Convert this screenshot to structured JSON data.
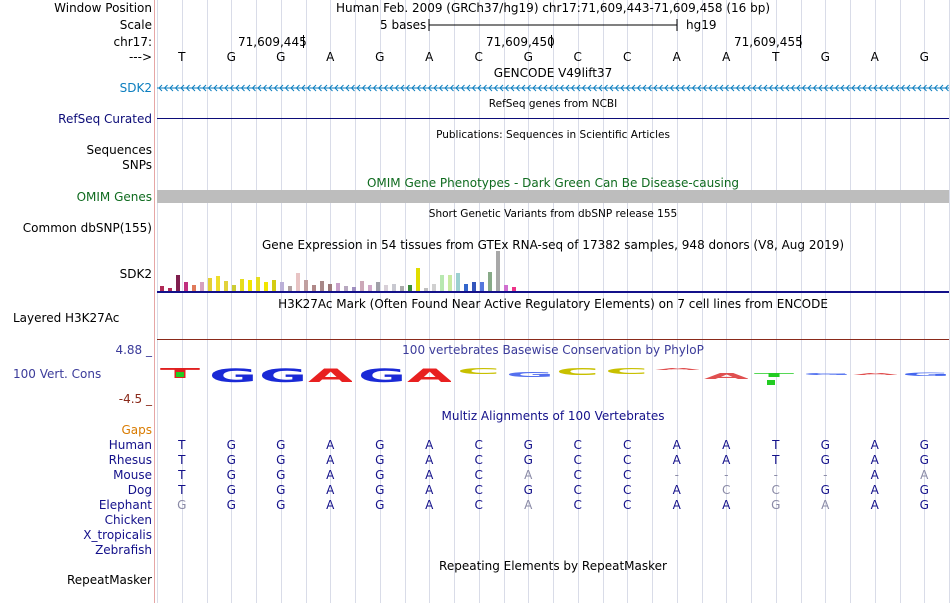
{
  "header": {
    "window_position_label": "Window Position",
    "scale_label": "Scale",
    "chrom_label": "chr17:",
    "arrow_label": "--->",
    "position_text": "Human Feb. 2009 (GRCh37/hg19)   chr17:71,609,443-71,609,458 (16 bp)",
    "scale_text": "5 bases",
    "assembly": "hg19",
    "ticks": [
      "71,609,445",
      "71,609,450",
      "71,609,455"
    ]
  },
  "bases": [
    "T",
    "G",
    "G",
    "A",
    "G",
    "A",
    "C",
    "G",
    "C",
    "C",
    "A",
    "A",
    "T",
    "G",
    "A",
    "G"
  ],
  "tracks": {
    "gencode_title": "GENCODE V49lift37",
    "gencode_gene": "SDK2",
    "refseq_title": "RefSeq genes from NCBI",
    "refseq_label": "RefSeq Curated",
    "pubs_title": "Publications: Sequences in Scientific Articles",
    "pubs_label": "Sequences",
    "snps_label": "SNPs",
    "omim_title": "OMIM Gene Phenotypes - Dark Green Can Be Disease-causing",
    "omim_label": "OMIM Genes",
    "dbsnp_title": "Short Genetic Variants from dbSNP release 155",
    "dbsnp_label": "Common dbSNP(155)",
    "gtex_title": "Gene Expression in 54 tissues from GTEx RNA-seq of 17382 samples, 948 donors (V8, Aug 2019)",
    "gtex_label": "SDK2",
    "h3k_title": "H3K27Ac Mark (Often Found Near Active Regulatory Elements) on 7 cell lines from ENCODE",
    "h3k_label": "Layered H3K27Ac",
    "cons_title": "100 vertebrates Basewise Conservation by PhyloP",
    "cons_label": "100 Vert. Cons",
    "cons_max": "4.88 _",
    "cons_min": "-4.5 _",
    "multiz_title": "Multiz Alignments of 100 Vertebrates",
    "repeat_title": "Repeating Elements by RepeatMasker",
    "repeat_label": "RepeatMasker"
  },
  "colors": {
    "gencode": "#0c7ebf",
    "refseq": "#0c0c78",
    "omim": "#0f6b1f",
    "species": "#13108a",
    "gaps": "#d97b00",
    "cons": "#3b3b9a",
    "gtex_axis": "#13108a",
    "h3k_axis": "#8a2a1a"
  },
  "gtex_bars": [
    {
      "h": 5,
      "c": "#b02a56"
    },
    {
      "h": 3,
      "c": "#b02a56"
    },
    {
      "h": 16,
      "c": "#7f1f4e"
    },
    {
      "h": 9,
      "c": "#c0307f"
    },
    {
      "h": 6,
      "c": "#e07a5a"
    },
    {
      "h": 9,
      "c": "#d6a0c0"
    },
    {
      "h": 13,
      "c": "#e4d033"
    },
    {
      "h": 15,
      "c": "#eedd2a"
    },
    {
      "h": 10,
      "c": "#e2d23a"
    },
    {
      "h": 6,
      "c": "#cccc33"
    },
    {
      "h": 12,
      "c": "#e6dd1e"
    },
    {
      "h": 11,
      "c": "#f2e600"
    },
    {
      "h": 14,
      "c": "#e6dd1e"
    },
    {
      "h": 9,
      "c": "#f2e600"
    },
    {
      "h": 11,
      "c": "#d4cc11"
    },
    {
      "h": 9,
      "c": "#bbb0d8"
    },
    {
      "h": 5,
      "c": "#b0a0a0"
    },
    {
      "h": 18,
      "c": "#e8c4c4"
    },
    {
      "h": 11,
      "c": "#c0a0a0"
    },
    {
      "h": 6,
      "c": "#b08888"
    },
    {
      "h": 10,
      "c": "#a88888"
    },
    {
      "h": 7,
      "c": "#9c7878"
    },
    {
      "h": 8,
      "c": "#c8a0c8"
    },
    {
      "h": 5,
      "c": "#b8a8c0"
    },
    {
      "h": 4,
      "c": "#a090c0"
    },
    {
      "h": 10,
      "c": "#cca8b8"
    },
    {
      "h": 6,
      "c": "#d0a8c8"
    },
    {
      "h": 9,
      "c": "#a0a0a8"
    },
    {
      "h": 6,
      "c": "#d8d0d8"
    },
    {
      "h": 7,
      "c": "#c8c8d0"
    },
    {
      "h": 5,
      "c": "#aaaaaa"
    },
    {
      "h": 6,
      "c": "#3b8a3b"
    },
    {
      "h": 23,
      "c": "#e0dd00"
    },
    {
      "h": 3,
      "c": "#bfbfbf"
    },
    {
      "h": 7,
      "c": "#d0d0d0"
    },
    {
      "h": 16,
      "c": "#b8e8b0"
    },
    {
      "h": 16,
      "c": "#c8eaa0"
    },
    {
      "h": 18,
      "c": "#9cd0d0"
    },
    {
      "h": 7,
      "c": "#3366cc"
    },
    {
      "h": 9,
      "c": "#3355bb"
    },
    {
      "h": 9,
      "c": "#5577dd"
    },
    {
      "h": 19,
      "c": "#88aa88"
    },
    {
      "h": 40,
      "c": "#a8a8a8"
    },
    {
      "h": 6,
      "c": "#d070d0"
    },
    {
      "h": 4,
      "c": "#ee3388"
    }
  ],
  "logo": [
    {
      "l": "T",
      "h": 10,
      "c": "#e02020",
      "y": 0
    },
    {
      "l": "G",
      "h": 14,
      "c": "#1a2ad6",
      "y": 0
    },
    {
      "l": "G",
      "h": 14,
      "c": "#1a2ad6",
      "y": 0
    },
    {
      "l": "A",
      "h": 14,
      "c": "#e82020",
      "y": 0
    },
    {
      "l": "G",
      "h": 14,
      "c": "#1a2ad6",
      "y": 0
    },
    {
      "l": "A",
      "h": 14,
      "c": "#e82020",
      "y": 0
    },
    {
      "l": "C",
      "h": 6,
      "c": "#c8c000",
      "y": 0
    },
    {
      "l": "G",
      "h": 5,
      "c": "#5570ee",
      "y": 4
    },
    {
      "l": "C",
      "h": 7,
      "c": "#c8c000",
      "y": 0
    },
    {
      "l": "C",
      "h": 6,
      "c": "#c8c000",
      "y": 0
    },
    {
      "l": "A",
      "h": 2,
      "c": "#e05050",
      "y": 0
    },
    {
      "l": "A",
      "h": 6,
      "c": "#e05050",
      "y": 5
    },
    {
      "l": "T",
      "h": 4,
      "c": "#22cc22",
      "y": 5
    },
    {
      "l": "G",
      "h": 2,
      "c": "#4466ee",
      "y": 5
    },
    {
      "l": "A",
      "h": 2,
      "c": "#e05050",
      "y": 5
    },
    {
      "l": "G",
      "h": 3,
      "c": "#4466ee",
      "y": 5
    }
  ],
  "alignments": [
    {
      "name": "Gaps",
      "kind": "gaps",
      "bases": []
    },
    {
      "name": "Human",
      "bases": [
        "T",
        "G",
        "G",
        "A",
        "G",
        "A",
        "C",
        "G",
        "C",
        "C",
        "A",
        "A",
        "T",
        "G",
        "A",
        "G"
      ],
      "faint": []
    },
    {
      "name": "Rhesus",
      "bases": [
        "T",
        "G",
        "G",
        "A",
        "G",
        "A",
        "C",
        "G",
        "C",
        "C",
        "A",
        "A",
        "T",
        "G",
        "A",
        "G"
      ],
      "faint": []
    },
    {
      "name": "Mouse",
      "bases": [
        "T",
        "G",
        "G",
        "A",
        "G",
        "A",
        "C",
        "A",
        "C",
        "C",
        "-",
        "-",
        "-",
        "-",
        "A",
        "A"
      ],
      "faint": [
        7,
        10,
        11,
        12,
        13,
        15
      ]
    },
    {
      "name": "Dog",
      "bases": [
        "T",
        "G",
        "G",
        "A",
        "G",
        "A",
        "C",
        "G",
        "C",
        "C",
        "A",
        "C",
        "C",
        "G",
        "A",
        "G"
      ],
      "faint": [
        11,
        12
      ]
    },
    {
      "name": "Elephant",
      "bases": [
        "G",
        "G",
        "G",
        "A",
        "G",
        "A",
        "C",
        "A",
        "C",
        "C",
        "A",
        "A",
        "G",
        "A",
        "A",
        "G"
      ],
      "faint": [
        0,
        7,
        12,
        13
      ]
    },
    {
      "name": "Chicken",
      "bases": []
    },
    {
      "name": "X_tropicalis",
      "bases": []
    },
    {
      "name": "Zebrafish",
      "bases": []
    }
  ]
}
